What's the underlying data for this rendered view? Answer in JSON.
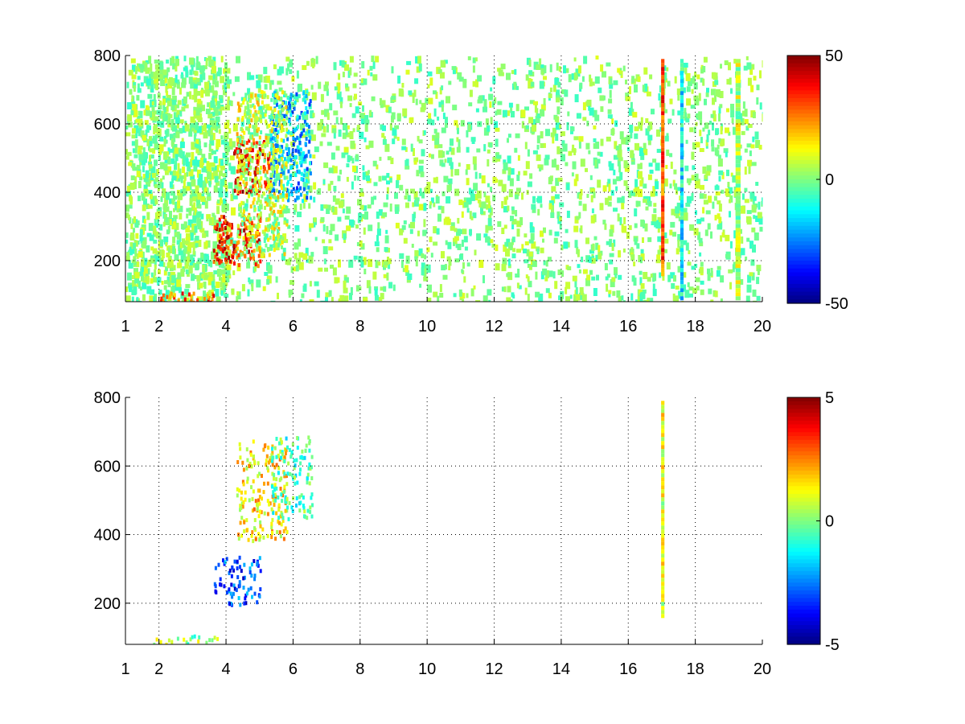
{
  "chart_data": [
    {
      "type": "heatmap",
      "title": "",
      "xlabel": "",
      "ylabel": "",
      "xlim": [
        1,
        20
      ],
      "ylim": [
        80,
        800
      ],
      "x_ticks": [
        "1",
        "2",
        "4",
        "6",
        "8",
        "10",
        "12",
        "14",
        "16",
        "18",
        "20"
      ],
      "x_tick_values": [
        1,
        2,
        4,
        6,
        8,
        10,
        12,
        14,
        16,
        18,
        20
      ],
      "y_ticks": [
        "200",
        "400",
        "600",
        "800"
      ],
      "y_tick_values": [
        200,
        400,
        600,
        800
      ],
      "grid": true,
      "colormap": "jet",
      "color_range": [
        -50,
        50
      ],
      "colorbar_ticks": [
        "50",
        "0",
        "-50"
      ],
      "colorbar_tick_values": [
        50,
        0,
        -50
      ],
      "features": [
        {
          "x": [
            2.0,
            3.6
          ],
          "y": [
            80,
            110
          ],
          "value": 30
        },
        {
          "x": [
            3.6,
            5.0
          ],
          "y": [
            190,
            340
          ],
          "value": 35
        },
        {
          "x": [
            4.2,
            5.3
          ],
          "y": [
            400,
            560
          ],
          "value": 35
        },
        {
          "x": [
            5.3,
            6.5
          ],
          "y": [
            380,
            700
          ],
          "value": -20
        },
        {
          "x": [
            4.3,
            5.8
          ],
          "y": [
            220,
            700
          ],
          "value": 8
        },
        {
          "x": [
            16.98,
            17.08
          ],
          "y": [
            160,
            790
          ],
          "value": 30
        },
        {
          "x": [
            17.55,
            17.65
          ],
          "y": [
            80,
            790
          ],
          "value": -12
        },
        {
          "x": [
            19.2,
            19.35
          ],
          "y": [
            80,
            790
          ],
          "value": 5
        }
      ]
    },
    {
      "type": "heatmap",
      "title": "",
      "xlabel": "",
      "ylabel": "",
      "xlim": [
        1,
        20
      ],
      "ylim": [
        80,
        800
      ],
      "x_ticks": [
        "1",
        "2",
        "4",
        "6",
        "8",
        "10",
        "12",
        "14",
        "16",
        "18",
        "20"
      ],
      "x_tick_values": [
        1,
        2,
        4,
        6,
        8,
        10,
        12,
        14,
        16,
        18,
        20
      ],
      "y_ticks": [
        "200",
        "400",
        "600",
        "800"
      ],
      "y_tick_values": [
        200,
        400,
        600,
        800
      ],
      "grid": true,
      "colormap": "jet",
      "color_range": [
        -5,
        5
      ],
      "colorbar_ticks": [
        "5",
        "0",
        "-5"
      ],
      "colorbar_tick_values": [
        5,
        0,
        -5
      ],
      "features": [
        {
          "x": [
            1.8,
            3.8
          ],
          "y": [
            80,
            110
          ],
          "value": 0.3
        },
        {
          "x": [
            3.6,
            5.0
          ],
          "y": [
            200,
            340
          ],
          "value": -3
        },
        {
          "x": [
            4.3,
            5.8
          ],
          "y": [
            380,
            680
          ],
          "value": 1.5
        },
        {
          "x": [
            5.3,
            6.6
          ],
          "y": [
            450,
            690
          ],
          "value": -0.5
        },
        {
          "x": [
            16.98,
            17.08
          ],
          "y": [
            160,
            790
          ],
          "value": 1
        }
      ]
    }
  ]
}
